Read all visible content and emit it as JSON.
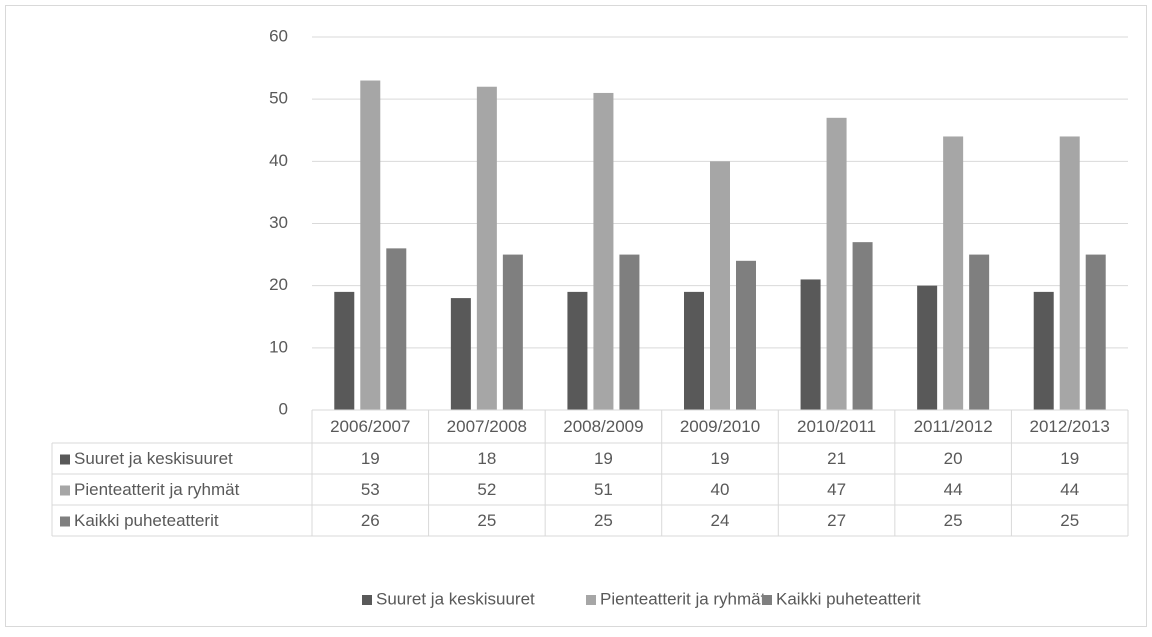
{
  "chart_data": {
    "type": "bar",
    "categories": [
      "2006/2007",
      "2007/2008",
      "2008/2009",
      "2009/2010",
      "2010/2011",
      "2011/2012",
      "2012/2013"
    ],
    "series": [
      {
        "name": "Suuret ja keskisuuret",
        "color": "#595959",
        "values": [
          19,
          18,
          19,
          19,
          21,
          20,
          19
        ]
      },
      {
        "name": "Pienteatterit ja ryhmät",
        "color": "#a6a6a6",
        "values": [
          53,
          52,
          51,
          40,
          47,
          44,
          44
        ]
      },
      {
        "name": "Kaikki puheteatterit",
        "color": "#7f7f7f",
        "values": [
          26,
          25,
          25,
          24,
          27,
          25,
          25
        ]
      }
    ],
    "ylim": [
      0,
      60
    ],
    "yticks": [
      0,
      10,
      20,
      30,
      40,
      50,
      60
    ],
    "grid": true,
    "legend": "bottom",
    "data_table": true
  }
}
